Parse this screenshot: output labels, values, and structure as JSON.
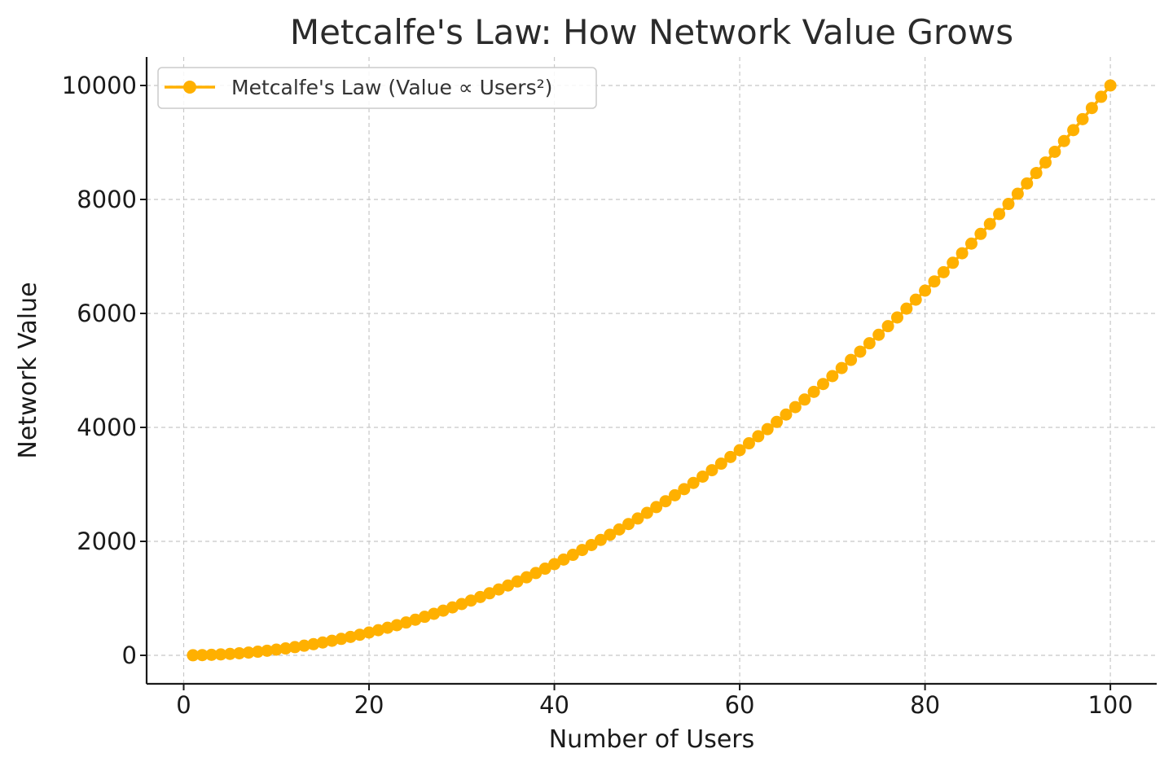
{
  "chart_data": {
    "type": "line",
    "title": "Metcalfe's Law: How Network Value Grows",
    "xlabel": "Number of Users",
    "ylabel": "Network Value",
    "xlim": [
      -4,
      105
    ],
    "ylim": [
      -500,
      10500
    ],
    "xticks": [
      0,
      20,
      40,
      60,
      80,
      100
    ],
    "yticks": [
      0,
      2000,
      4000,
      6000,
      8000,
      10000
    ],
    "grid": true,
    "legend_position": "top-left",
    "series": [
      {
        "name": "Metcalfe's Law (Value ∝ Users²)",
        "color": "#FFB000",
        "marker": "circle",
        "x": [
          1,
          2,
          3,
          4,
          5,
          6,
          7,
          8,
          9,
          10,
          11,
          12,
          13,
          14,
          15,
          16,
          17,
          18,
          19,
          20,
          21,
          22,
          23,
          24,
          25,
          26,
          27,
          28,
          29,
          30,
          31,
          32,
          33,
          34,
          35,
          36,
          37,
          38,
          39,
          40,
          41,
          42,
          43,
          44,
          45,
          46,
          47,
          48,
          49,
          50,
          51,
          52,
          53,
          54,
          55,
          56,
          57,
          58,
          59,
          60,
          61,
          62,
          63,
          64,
          65,
          66,
          67,
          68,
          69,
          70,
          71,
          72,
          73,
          74,
          75,
          76,
          77,
          78,
          79,
          80,
          81,
          82,
          83,
          84,
          85,
          86,
          87,
          88,
          89,
          90,
          91,
          92,
          93,
          94,
          95,
          96,
          97,
          98,
          99,
          100
        ],
        "values": [
          1,
          4,
          9,
          16,
          25,
          36,
          49,
          64,
          81,
          100,
          121,
          144,
          169,
          196,
          225,
          256,
          289,
          324,
          361,
          400,
          441,
          484,
          529,
          576,
          625,
          676,
          729,
          784,
          841,
          900,
          961,
          1024,
          1089,
          1156,
          1225,
          1296,
          1369,
          1444,
          1521,
          1600,
          1681,
          1764,
          1849,
          1936,
          2025,
          2116,
          2209,
          2304,
          2401,
          2500,
          2601,
          2704,
          2809,
          2916,
          3025,
          3136,
          3249,
          3364,
          3481,
          3600,
          3721,
          3844,
          3969,
          4096,
          4225,
          4356,
          4489,
          4624,
          4761,
          4900,
          5041,
          5184,
          5329,
          5476,
          5625,
          5776,
          5929,
          6084,
          6241,
          6400,
          6561,
          6724,
          6889,
          7056,
          7225,
          7396,
          7569,
          7744,
          7921,
          8100,
          8281,
          8464,
          8649,
          8836,
          9025,
          9216,
          9409,
          9604,
          9801,
          10000
        ]
      }
    ]
  }
}
